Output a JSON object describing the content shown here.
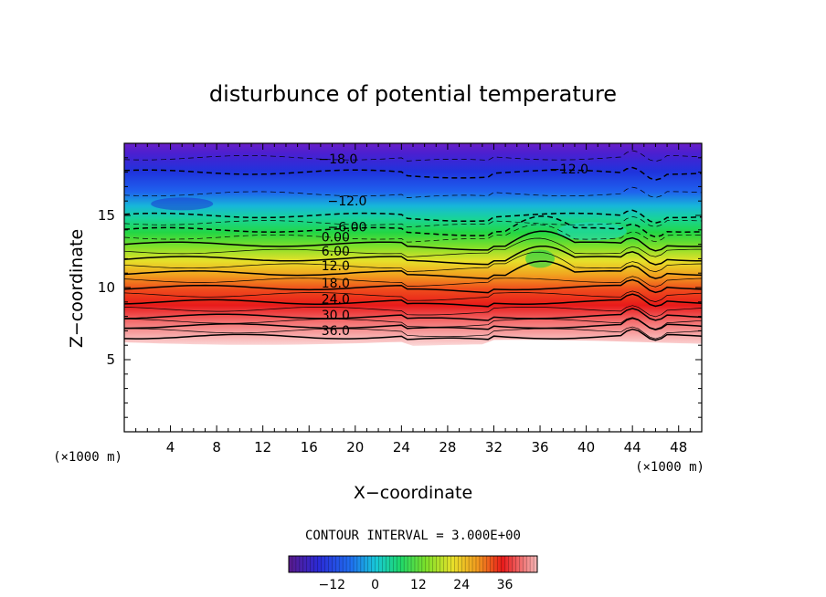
{
  "chart_data": {
    "type": "contour",
    "title": "disturbunce of potential temperature",
    "xlabel": "X−coordinate",
    "ylabel": "Z−coordinate",
    "x_unit": "(×1000 m)",
    "y_unit": "(×1000 m)",
    "xlim": [
      0,
      50
    ],
    "ylim": [
      0,
      20
    ],
    "x_ticks": [
      "4",
      "8",
      "12",
      "16",
      "20",
      "24",
      "28",
      "32",
      "36",
      "40",
      "44",
      "48"
    ],
    "y_ticks": [
      "5",
      "10",
      "15"
    ],
    "contour_interval_text": "CONTOUR INTERVAL = 3.000E+00",
    "contour_interval": 3.0,
    "colorbar_ticks": [
      "−12",
      "0",
      "12",
      "24",
      "36"
    ],
    "colorbar_range": [
      -24,
      45
    ],
    "contour_labels": [
      "−18.0",
      "−12.0",
      "−12.0",
      "−6.00",
      "0.00",
      "6.00",
      "12.0",
      "18.0",
      "24.0",
      "30.0",
      "36.0"
    ],
    "level_profile": [
      {
        "z": 6.2,
        "value": 45
      },
      {
        "z": 7.0,
        "value": 39
      },
      {
        "z": 8.0,
        "value": 30
      },
      {
        "z": 9.0,
        "value": 24
      },
      {
        "z": 10.0,
        "value": 18
      },
      {
        "z": 11.0,
        "value": 12
      },
      {
        "z": 12.0,
        "value": 6
      },
      {
        "z": 13.0,
        "value": 0
      },
      {
        "z": 14.0,
        "value": -6
      },
      {
        "z": 15.0,
        "value": -12
      },
      {
        "z": 16.5,
        "value": -15
      },
      {
        "z": 18.0,
        "value": -18
      },
      {
        "z": 20.0,
        "value": -24
      }
    ]
  }
}
